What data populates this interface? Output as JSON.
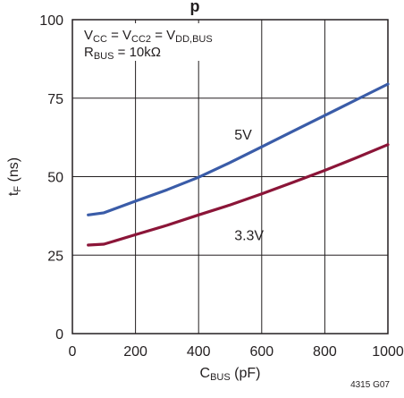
{
  "chart_data": {
    "type": "line",
    "title_fragment": "p",
    "xlabel": {
      "main": "C",
      "sub": "BUS",
      "tail": " (pF)"
    },
    "ylabel": {
      "main": "t",
      "sub": "F",
      "tail": " (ns)"
    },
    "xlim": [
      0,
      1000
    ],
    "ylim": [
      0,
      100
    ],
    "x_ticks": [
      0,
      200,
      400,
      600,
      800,
      1000
    ],
    "y_ticks": [
      0,
      25,
      50,
      75,
      100
    ],
    "grid": true,
    "annotation_lines": [
      {
        "parts": [
          {
            "t": "V"
          },
          {
            "t": "CC",
            "sub": true
          },
          {
            "t": " = V"
          },
          {
            "t": "CC2",
            "sub": true
          },
          {
            "t": " = V"
          },
          {
            "t": "DD,BUS",
            "sub": true
          }
        ]
      },
      {
        "parts": [
          {
            "t": "R"
          },
          {
            "t": "BUS",
            "sub": true
          },
          {
            "t": " = 10kΩ"
          }
        ]
      }
    ],
    "series": [
      {
        "name": "5V",
        "color": "#3a5ca8",
        "x": [
          50,
          100,
          200,
          300,
          400,
          500,
          600,
          700,
          800,
          900,
          1000
        ],
        "y": [
          37.8,
          38.5,
          42.2,
          45.8,
          49.8,
          54.5,
          59.5,
          64.5,
          69.5,
          74.5,
          79.5
        ]
      },
      {
        "name": "3.3V",
        "color": "#8b1538",
        "x": [
          50,
          100,
          200,
          300,
          400,
          500,
          600,
          700,
          800,
          900,
          1000
        ],
        "y": [
          28.2,
          28.5,
          31.5,
          34.5,
          37.8,
          41.0,
          44.5,
          48.2,
          52.0,
          56.0,
          60.2
        ]
      }
    ],
    "footnote": "4315 G07"
  }
}
